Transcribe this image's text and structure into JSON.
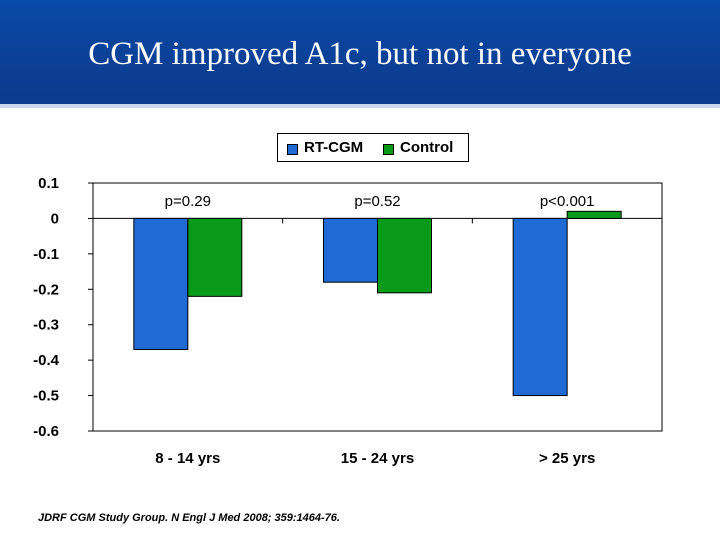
{
  "slide": {
    "title": "CGM improved A1c, but not in everyone",
    "citation": "JDRF CGM Study Group. N Engl J Med 2008; 359:1464-76."
  },
  "colors": {
    "header": "#0b4096",
    "rt_cgm": "#1f6ad4",
    "control": "#0a9a1a"
  },
  "chart_data": {
    "type": "bar",
    "title": "",
    "xlabel": "",
    "ylabel": "",
    "categories": [
      "8 - 14 yrs",
      "15 - 24 yrs",
      "> 25 yrs"
    ],
    "series": [
      {
        "name": "RT-CGM",
        "values": [
          -0.37,
          -0.18,
          -0.5
        ]
      },
      {
        "name": "Control",
        "values": [
          -0.22,
          -0.21,
          0.02
        ]
      }
    ],
    "p_values": [
      "p=0.29",
      "p=0.52",
      "p<0.001"
    ],
    "ylim": [
      -0.6,
      0.1
    ],
    "yticks": [
      "0.1",
      "0",
      "-0.1",
      "-0.2",
      "-0.3",
      "-0.4",
      "-0.5",
      "-0.6"
    ],
    "ytick_values": [
      0.1,
      0,
      -0.1,
      -0.2,
      -0.3,
      -0.4,
      -0.5,
      -0.6
    ],
    "legend_position": "top-center",
    "grid": false
  }
}
